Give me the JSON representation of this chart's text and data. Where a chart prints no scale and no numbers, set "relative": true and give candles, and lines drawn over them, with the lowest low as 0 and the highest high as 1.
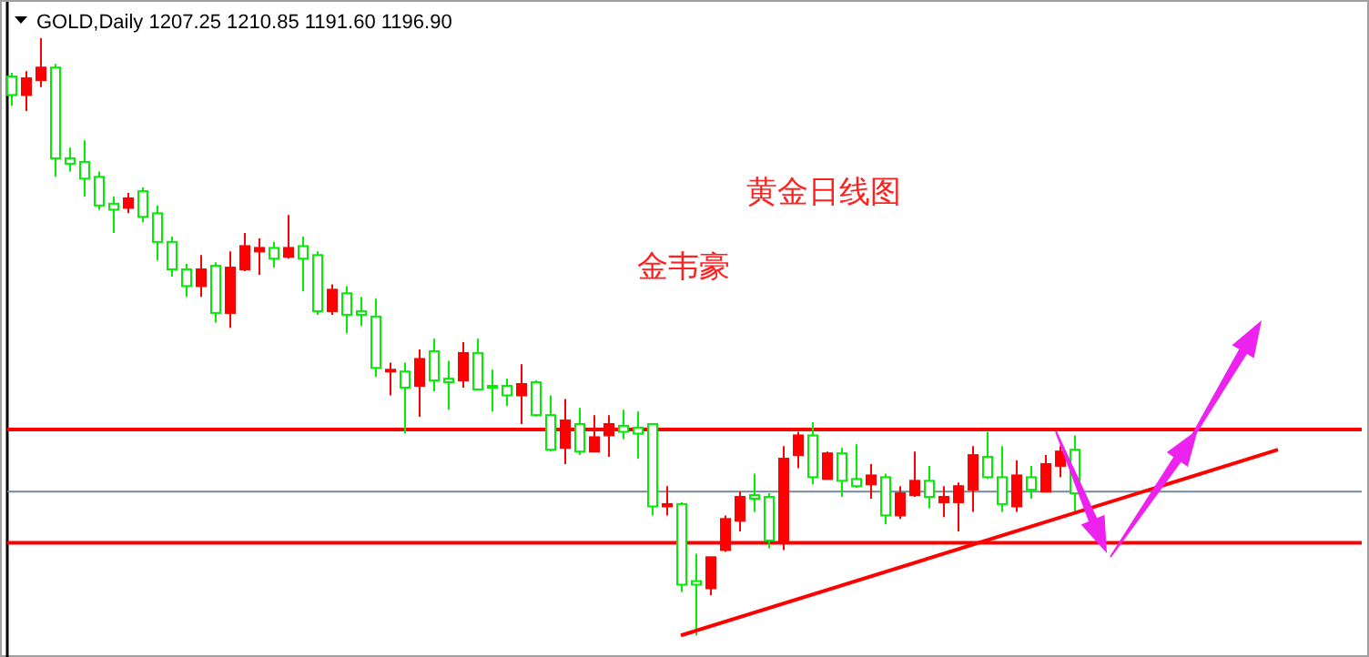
{
  "chart_data": {
    "type": "candlestick",
    "title": "GOLD,Daily 1207.25 1210.85 1191.60 1196.90",
    "annotations": [
      "黄金日线图",
      "金韦豪"
    ],
    "relative": true,
    "legend": false,
    "grid": false,
    "tick_labels": false,
    "categories": [
      null,
      null,
      null,
      null,
      null,
      null,
      null,
      null,
      null,
      null,
      null,
      null,
      null,
      null,
      null,
      null,
      null,
      null,
      null,
      null,
      null,
      null,
      null,
      null,
      null,
      null,
      null,
      null,
      null,
      null,
      null,
      null,
      null,
      null,
      null,
      null,
      null,
      null,
      null,
      null,
      null,
      null,
      null,
      null,
      null,
      null,
      null,
      null,
      null,
      null,
      null,
      null,
      null,
      null,
      null,
      null,
      null,
      null,
      null,
      null,
      null,
      null,
      null,
      null,
      null,
      null,
      null,
      null,
      null,
      null,
      null,
      null,
      null,
      null,
      null,
      null,
      null,
      null,
      null,
      null,
      null,
      null,
      null,
      null,
      null,
      null,
      null,
      null,
      null,
      null,
      null,
      null,
      null
    ],
    "ohlc": [
      [
        0.936,
        0.942,
        0.887,
        0.905
      ],
      [
        0.905,
        0.945,
        0.878,
        0.933
      ],
      [
        0.93,
        1.0,
        0.918,
        0.951
      ],
      [
        0.951,
        0.957,
        0.768,
        0.799
      ],
      [
        0.799,
        0.817,
        0.777,
        0.79
      ],
      [
        0.793,
        0.829,
        0.735,
        0.765
      ],
      [
        0.768,
        0.777,
        0.713,
        0.72
      ],
      [
        0.723,
        0.735,
        0.674,
        0.713
      ],
      [
        0.716,
        0.741,
        0.707,
        0.732
      ],
      [
        0.744,
        0.75,
        0.692,
        0.701
      ],
      [
        0.707,
        0.72,
        0.628,
        0.659
      ],
      [
        0.659,
        0.668,
        0.601,
        0.613
      ],
      [
        0.613,
        0.622,
        0.567,
        0.585
      ],
      [
        0.585,
        0.637,
        0.567,
        0.613
      ],
      [
        0.619,
        0.625,
        0.524,
        0.54
      ],
      [
        0.54,
        0.643,
        0.515,
        0.616
      ],
      [
        0.613,
        0.674,
        0.61,
        0.652
      ],
      [
        0.643,
        0.665,
        0.604,
        0.649
      ],
      [
        0.649,
        0.659,
        0.616,
        0.631
      ],
      [
        0.634,
        0.704,
        0.631,
        0.649
      ],
      [
        0.652,
        0.668,
        0.576,
        0.631
      ],
      [
        0.637,
        0.643,
        0.537,
        0.543
      ],
      [
        0.543,
        0.588,
        0.537,
        0.579
      ],
      [
        0.573,
        0.585,
        0.506,
        0.537
      ],
      [
        0.543,
        0.567,
        0.518,
        0.537
      ],
      [
        0.534,
        0.564,
        0.433,
        0.448
      ],
      [
        0.442,
        0.457,
        0.402,
        0.445
      ],
      [
        0.442,
        0.457,
        0.338,
        0.415
      ],
      [
        0.418,
        0.479,
        0.366,
        0.463
      ],
      [
        0.476,
        0.497,
        0.409,
        0.427
      ],
      [
        0.43,
        0.46,
        0.378,
        0.424
      ],
      [
        0.427,
        0.491,
        0.415,
        0.473
      ],
      [
        0.473,
        0.497,
        0.412,
        0.412
      ],
      [
        0.418,
        0.445,
        0.375,
        0.415
      ],
      [
        0.418,
        0.43,
        0.384,
        0.402
      ],
      [
        0.402,
        0.454,
        0.354,
        0.421
      ],
      [
        0.424,
        0.427,
        0.366,
        0.369
      ],
      [
        0.369,
        0.402,
        0.308,
        0.311
      ],
      [
        0.314,
        0.396,
        0.287,
        0.36
      ],
      [
        0.354,
        0.381,
        0.302,
        0.308
      ],
      [
        0.308,
        0.369,
        0.308,
        0.332
      ],
      [
        0.335,
        0.369,
        0.299,
        0.354
      ],
      [
        0.351,
        0.378,
        0.329,
        0.341
      ],
      [
        0.348,
        0.375,
        0.296,
        0.338
      ],
      [
        0.354,
        0.354,
        0.201,
        0.216
      ],
      [
        0.216,
        0.25,
        0.201,
        0.22
      ],
      [
        0.22,
        0.223,
        0.073,
        0.085
      ],
      [
        0.091,
        0.137,
        0.0,
        0.085
      ],
      [
        0.079,
        0.131,
        0.067,
        0.131
      ],
      [
        0.143,
        0.201,
        0.14,
        0.195
      ],
      [
        0.192,
        0.241,
        0.174,
        0.232
      ],
      [
        0.235,
        0.271,
        0.207,
        0.229
      ],
      [
        0.232,
        0.238,
        0.146,
        0.159
      ],
      [
        0.159,
        0.317,
        0.143,
        0.296
      ],
      [
        0.302,
        0.341,
        0.28,
        0.335
      ],
      [
        0.335,
        0.357,
        0.253,
        0.265
      ],
      [
        0.262,
        0.308,
        0.262,
        0.305
      ],
      [
        0.305,
        0.314,
        0.232,
        0.259
      ],
      [
        0.262,
        0.32,
        0.247,
        0.25
      ],
      [
        0.253,
        0.287,
        0.229,
        0.268
      ],
      [
        0.265,
        0.271,
        0.186,
        0.201
      ],
      [
        0.201,
        0.25,
        0.195,
        0.238
      ],
      [
        0.235,
        0.308,
        0.232,
        0.259
      ],
      [
        0.259,
        0.284,
        0.213,
        0.232
      ],
      [
        0.223,
        0.25,
        0.198,
        0.232
      ],
      [
        0.223,
        0.256,
        0.174,
        0.25
      ],
      [
        0.244,
        0.317,
        0.207,
        0.302
      ],
      [
        0.299,
        0.341,
        0.262,
        0.265
      ],
      [
        0.265,
        0.317,
        0.207,
        0.22
      ],
      [
        0.216,
        0.293,
        0.207,
        0.268
      ],
      [
        0.265,
        0.284,
        0.229,
        0.244
      ],
      [
        0.241,
        0.302,
        0.241,
        0.287
      ],
      [
        0.284,
        0.317,
        0.265,
        0.308
      ],
      [
        0.311,
        0.335,
        0.204,
        0.238
      ],
      null,
      null,
      null,
      null,
      null,
      null,
      null,
      null,
      null,
      null,
      null,
      null,
      null,
      null,
      null,
      null,
      null,
      null,
      null
    ],
    "series": [
      {
        "type": "line",
        "values": [
          null,
          null,
          null,
          null,
          null,
          null,
          null,
          null,
          null,
          null,
          null,
          null,
          null,
          null,
          null,
          null,
          null,
          null,
          null,
          null,
          null,
          null,
          null,
          null,
          null,
          null,
          null,
          null,
          null,
          null,
          null,
          null,
          null,
          null,
          null,
          null,
          null,
          null,
          null,
          null,
          null,
          null,
          null,
          null,
          null,
          null,
          0.0,
          null,
          null,
          null,
          null,
          null,
          null,
          null,
          null,
          null,
          null,
          null,
          null,
          null,
          null,
          null,
          null,
          null,
          null,
          null,
          null,
          null,
          null,
          null,
          null,
          null,
          null,
          null,
          null,
          null,
          null,
          null,
          null,
          null,
          null,
          null,
          null,
          null,
          null,
          null,
          null,
          0.311,
          null,
          null,
          null,
          null,
          null
        ],
        "color": "#ff0000"
      }
    ],
    "ref_lines": [
      {
        "axis": "y",
        "value": 0.345,
        "color": "#ff0000"
      },
      {
        "axis": "y",
        "value": 0.241,
        "color": "#778899"
      },
      {
        "axis": "y",
        "value": 0.155,
        "color": "#ff0000"
      }
    ]
  }
}
